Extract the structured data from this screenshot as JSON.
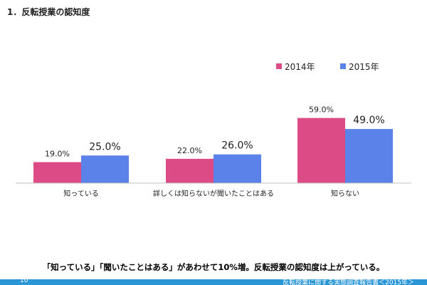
{
  "slide": {
    "title": "1．反転授業の認知度",
    "conclusion": "「知っている」「聞いたことはある」があわせて10%増。反転授業の認知度は上がっている。",
    "footer_page": "10",
    "footer_doc": "反転授業に関する実態調査報告書＜2015年＞"
  },
  "colors": {
    "series_2014": "#dc4b85",
    "series_2015": "#5b82e8",
    "axis": "#bfbfbf",
    "footer": "#2a96d6"
  },
  "chart_data": {
    "type": "bar",
    "categories": [
      "知っている",
      "詳しくは知らないが聞いたことはある",
      "知らない"
    ],
    "series": [
      {
        "name": "2014年",
        "values": [
          19.0,
          22.0,
          59.0
        ],
        "labels": [
          "19.0%",
          "22.0%",
          "59.0%"
        ]
      },
      {
        "name": "2015年",
        "values": [
          25.0,
          26.0,
          49.0
        ],
        "labels": [
          "25.0%",
          "26.0%",
          "49.0%"
        ]
      }
    ],
    "ylim": [
      0,
      75
    ],
    "grid": false,
    "legend_position": "top-right"
  }
}
